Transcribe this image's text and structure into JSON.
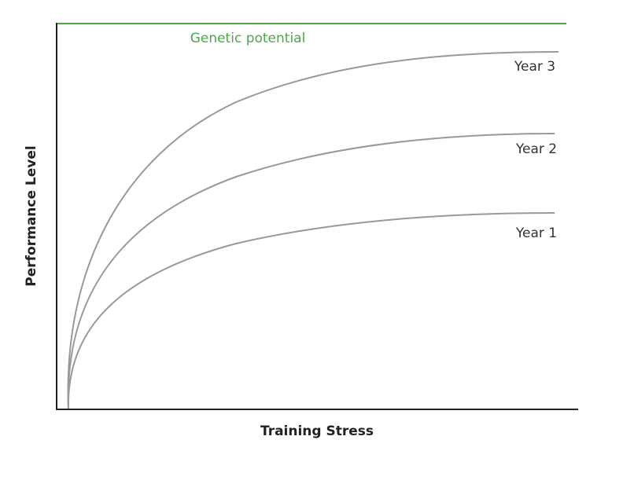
{
  "graph": {
    "x_axis_label": "Training Stress",
    "y_axis_label": "Performance Level",
    "ceiling_label": "Genetic potential",
    "curves": [
      {
        "label": "Year 3"
      },
      {
        "label": "Year 2"
      },
      {
        "label": "Year 1"
      }
    ]
  }
}
